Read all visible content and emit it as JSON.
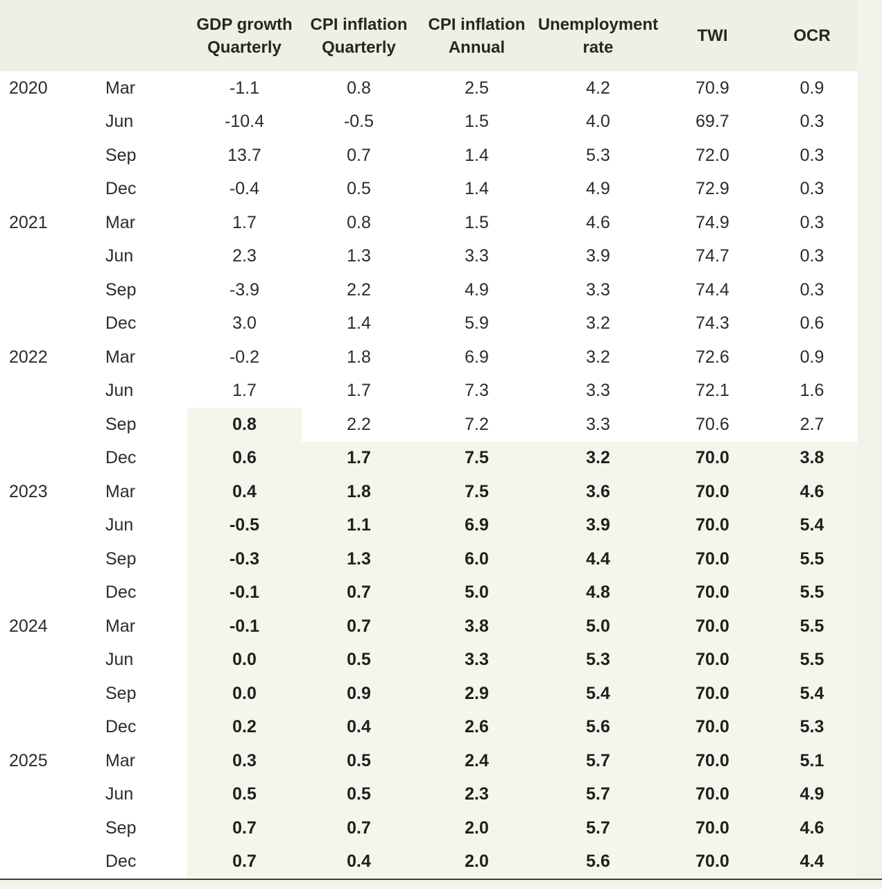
{
  "colors": {
    "page_bg": "#f4f3ea",
    "header_bg": "#f0efe3",
    "row_bg": "#ffffff",
    "forecast_shade_bg": "#f6f5ec",
    "text": "#2b2b2b",
    "bottom_border": "#3f3f3f"
  },
  "chart_data": {
    "type": "table",
    "title": "",
    "columns": [
      "Year",
      "Quarter",
      "GDP growth Quarterly",
      "CPI inflation Quarterly",
      "CPI inflation Annual",
      "Unemployment rate",
      "TWI",
      "OCR"
    ],
    "headers": [
      {
        "line1": "GDP growth",
        "line2": "Quarterly"
      },
      {
        "line1": "CPI inflation",
        "line2": "Quarterly"
      },
      {
        "line1": "CPI inflation",
        "line2": "Annual"
      },
      {
        "line1": "Unemployment",
        "line2": "rate"
      },
      {
        "line1": "TWI",
        "line2": ""
      },
      {
        "line1": "OCR",
        "line2": ""
      }
    ],
    "layout": {
      "grid": "off",
      "value_alignment": "center",
      "shaded_bold_cells_count_per_row_key": "forecast_cols"
    },
    "rows": [
      {
        "year": "2020",
        "quarter": "Mar",
        "values": [
          "-1.1",
          "0.8",
          "2.5",
          "4.2",
          "70.9",
          "0.9"
        ],
        "forecast_cols": 0
      },
      {
        "year": "",
        "quarter": "Jun",
        "values": [
          "-10.4",
          "-0.5",
          "1.5",
          "4.0",
          "69.7",
          "0.3"
        ],
        "forecast_cols": 0
      },
      {
        "year": "",
        "quarter": "Sep",
        "values": [
          "13.7",
          "0.7",
          "1.4",
          "5.3",
          "72.0",
          "0.3"
        ],
        "forecast_cols": 0
      },
      {
        "year": "",
        "quarter": "Dec",
        "values": [
          "-0.4",
          "0.5",
          "1.4",
          "4.9",
          "72.9",
          "0.3"
        ],
        "forecast_cols": 0
      },
      {
        "year": "2021",
        "quarter": "Mar",
        "values": [
          "1.7",
          "0.8",
          "1.5",
          "4.6",
          "74.9",
          "0.3"
        ],
        "forecast_cols": 0
      },
      {
        "year": "",
        "quarter": "Jun",
        "values": [
          "2.3",
          "1.3",
          "3.3",
          "3.9",
          "74.7",
          "0.3"
        ],
        "forecast_cols": 0
      },
      {
        "year": "",
        "quarter": "Sep",
        "values": [
          "-3.9",
          "2.2",
          "4.9",
          "3.3",
          "74.4",
          "0.3"
        ],
        "forecast_cols": 0
      },
      {
        "year": "",
        "quarter": "Dec",
        "values": [
          "3.0",
          "1.4",
          "5.9",
          "3.2",
          "74.3",
          "0.6"
        ],
        "forecast_cols": 0
      },
      {
        "year": "2022",
        "quarter": "Mar",
        "values": [
          "-0.2",
          "1.8",
          "6.9",
          "3.2",
          "72.6",
          "0.9"
        ],
        "forecast_cols": 0
      },
      {
        "year": "",
        "quarter": "Jun",
        "values": [
          "1.7",
          "1.7",
          "7.3",
          "3.3",
          "72.1",
          "1.6"
        ],
        "forecast_cols": 0
      },
      {
        "year": "",
        "quarter": "Sep",
        "values": [
          "0.8",
          "2.2",
          "7.2",
          "3.3",
          "70.6",
          "2.7"
        ],
        "forecast_cols": 1
      },
      {
        "year": "",
        "quarter": "Dec",
        "values": [
          "0.6",
          "1.7",
          "7.5",
          "3.2",
          "70.0",
          "3.8"
        ],
        "forecast_cols": 6
      },
      {
        "year": "2023",
        "quarter": "Mar",
        "values": [
          "0.4",
          "1.8",
          "7.5",
          "3.6",
          "70.0",
          "4.6"
        ],
        "forecast_cols": 6
      },
      {
        "year": "",
        "quarter": "Jun",
        "values": [
          "-0.5",
          "1.1",
          "6.9",
          "3.9",
          "70.0",
          "5.4"
        ],
        "forecast_cols": 6
      },
      {
        "year": "",
        "quarter": "Sep",
        "values": [
          "-0.3",
          "1.3",
          "6.0",
          "4.4",
          "70.0",
          "5.5"
        ],
        "forecast_cols": 6
      },
      {
        "year": "",
        "quarter": "Dec",
        "values": [
          "-0.1",
          "0.7",
          "5.0",
          "4.8",
          "70.0",
          "5.5"
        ],
        "forecast_cols": 6
      },
      {
        "year": "2024",
        "quarter": "Mar",
        "values": [
          "-0.1",
          "0.7",
          "3.8",
          "5.0",
          "70.0",
          "5.5"
        ],
        "forecast_cols": 6
      },
      {
        "year": "",
        "quarter": "Jun",
        "values": [
          "0.0",
          "0.5",
          "3.3",
          "5.3",
          "70.0",
          "5.5"
        ],
        "forecast_cols": 6
      },
      {
        "year": "",
        "quarter": "Sep",
        "values": [
          "0.0",
          "0.9",
          "2.9",
          "5.4",
          "70.0",
          "5.4"
        ],
        "forecast_cols": 6
      },
      {
        "year": "",
        "quarter": "Dec",
        "values": [
          "0.2",
          "0.4",
          "2.6",
          "5.6",
          "70.0",
          "5.3"
        ],
        "forecast_cols": 6
      },
      {
        "year": "2025",
        "quarter": "Mar",
        "values": [
          "0.3",
          "0.5",
          "2.4",
          "5.7",
          "70.0",
          "5.1"
        ],
        "forecast_cols": 6
      },
      {
        "year": "",
        "quarter": "Jun",
        "values": [
          "0.5",
          "0.5",
          "2.3",
          "5.7",
          "70.0",
          "4.9"
        ],
        "forecast_cols": 6
      },
      {
        "year": "",
        "quarter": "Sep",
        "values": [
          "0.7",
          "0.7",
          "2.0",
          "5.7",
          "70.0",
          "4.6"
        ],
        "forecast_cols": 6
      },
      {
        "year": "",
        "quarter": "Dec",
        "values": [
          "0.7",
          "0.4",
          "2.0",
          "5.6",
          "70.0",
          "4.4"
        ],
        "forecast_cols": 6
      }
    ]
  }
}
